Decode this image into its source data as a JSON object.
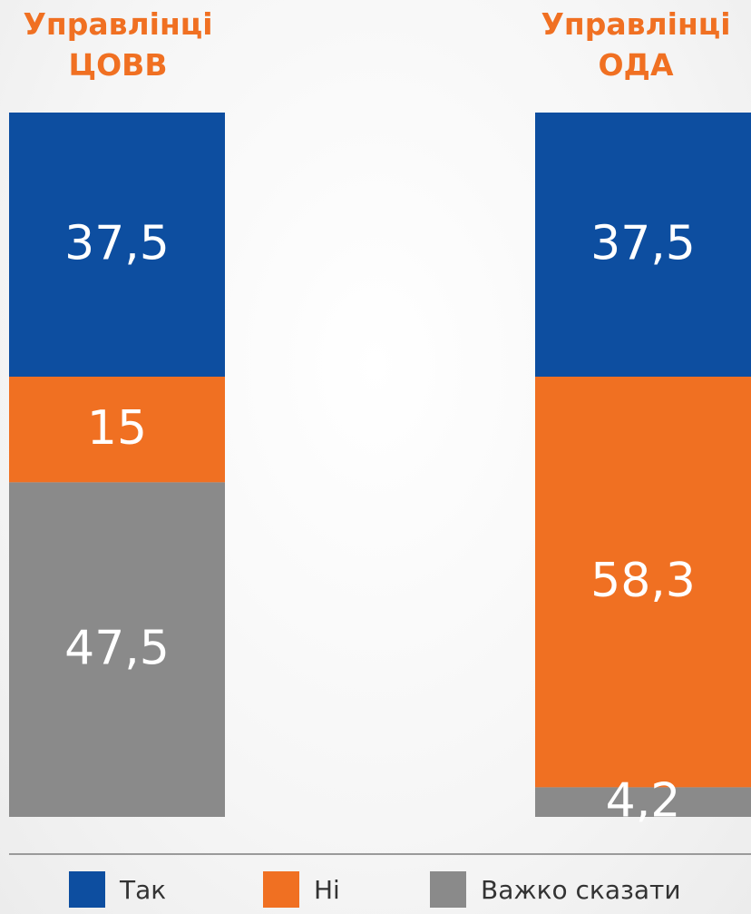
{
  "chart_data": {
    "type": "bar",
    "stacked": true,
    "orientation": "vertical",
    "categories": [
      "Управлінці ЦОВВ",
      "Управлінці ОДА"
    ],
    "category_lines": [
      [
        "Управлінці",
        "ЦОВВ"
      ],
      [
        "Управлінці",
        "ОДА"
      ]
    ],
    "series": [
      {
        "name": "Так",
        "color": "#0d4ea0",
        "values": [
          37.5,
          37.5
        ],
        "labels": [
          "37,5",
          "37,5"
        ]
      },
      {
        "name": "Ні",
        "color": "#f07022",
        "values": [
          15,
          58.3
        ],
        "labels": [
          "15",
          "58,3"
        ]
      },
      {
        "name": "Важко сказати",
        "color": "#8a8a8a",
        "values": [
          47.5,
          4.2
        ],
        "labels": [
          "47,5",
          "4,2"
        ]
      }
    ],
    "ylim": [
      0,
      100
    ],
    "grid": false,
    "legend_position": "bottom",
    "title": "",
    "xlabel": "",
    "ylabel": ""
  }
}
